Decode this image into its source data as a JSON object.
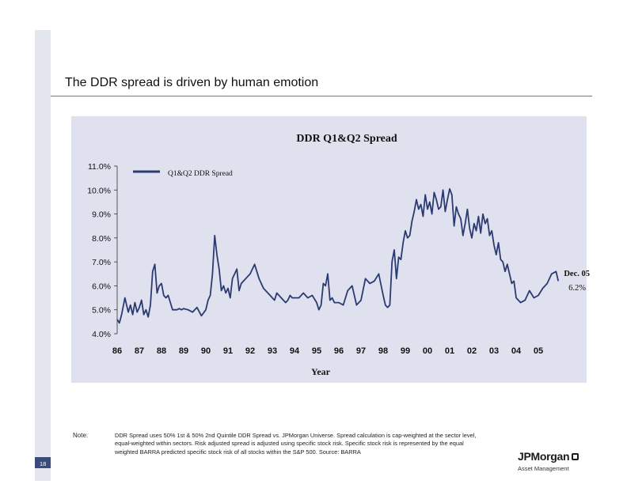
{
  "slide": {
    "title": "The DDR spread is driven by human emotion",
    "page_number": "18",
    "note_label": "Note:",
    "note_text": "DDR Spread uses 50% 1st & 50% 2nd Quintile DDR Spread vs. JPMorgan Universe. Spread calculation is cap-weighted at the sector level, equal-weighted within sectors. Risk adjusted spread is adjusted using specific stock risk. Specific stock risk is represented by the equal weighted BARRA predicted specific stock risk of all stocks within the S&P 500. Source: BARRA",
    "logo_text": "JPMorgan",
    "logo_sub": "Asset Management"
  },
  "chart_data": {
    "type": "line",
    "title": "DDR Q1&Q2 Spread",
    "xlabel": "Year",
    "ylabel": "",
    "x_ticks": [
      "86",
      "87",
      "88",
      "89",
      "90",
      "91",
      "92",
      "93",
      "94",
      "95",
      "96",
      "97",
      "98",
      "99",
      "00",
      "01",
      "02",
      "03",
      "04",
      "05"
    ],
    "y_ticks": [
      "4.0%",
      "5.0%",
      "6.0%",
      "7.0%",
      "8.0%",
      "9.0%",
      "10.0%",
      "11.0%"
    ],
    "ylim": [
      4.0,
      11.0
    ],
    "xlim": [
      1986.0,
      2006.0
    ],
    "legend": "top-left",
    "line_color": "#2c3a72",
    "annotation": {
      "label": "Dec. 05",
      "value": "6.2%"
    },
    "series": [
      {
        "name": "Q1&Q2 DDR Spread",
        "x": [
          1986.0,
          1986.1,
          1986.2,
          1986.35,
          1986.5,
          1986.6,
          1986.7,
          1986.8,
          1986.9,
          1987.0,
          1987.1,
          1987.2,
          1987.3,
          1987.4,
          1987.5,
          1987.6,
          1987.7,
          1987.8,
          1987.9,
          1988.0,
          1988.1,
          1988.2,
          1988.3,
          1988.4,
          1988.5,
          1988.6,
          1988.7,
          1988.8,
          1988.9,
          1989.0,
          1989.2,
          1989.4,
          1989.6,
          1989.8,
          1990.0,
          1990.1,
          1990.2,
          1990.3,
          1990.4,
          1990.5,
          1990.6,
          1990.7,
          1990.8,
          1990.9,
          1991.0,
          1991.1,
          1991.2,
          1991.3,
          1991.4,
          1991.5,
          1991.6,
          1991.7,
          1991.8,
          1991.9,
          1992.0,
          1992.2,
          1992.4,
          1992.6,
          1992.8,
          1992.9,
          1993.0,
          1993.1,
          1993.2,
          1993.3,
          1993.4,
          1993.5,
          1993.6,
          1993.7,
          1993.8,
          1993.9,
          1994.0,
          1994.2,
          1994.4,
          1994.6,
          1994.8,
          1995.0,
          1995.1,
          1995.2,
          1995.3,
          1995.4,
          1995.5,
          1995.6,
          1995.7,
          1995.8,
          1996.0,
          1996.2,
          1996.4,
          1996.6,
          1996.8,
          1997.0,
          1997.2,
          1997.4,
          1997.6,
          1997.8,
          1998.0,
          1998.1,
          1998.2,
          1998.3,
          1998.4,
          1998.5,
          1998.6,
          1998.7,
          1998.8,
          1998.9,
          1999.0,
          1999.1,
          1999.2,
          1999.3,
          1999.4,
          1999.5,
          1999.6,
          1999.7,
          1999.8,
          1999.9,
          2000.0,
          2000.1,
          2000.2,
          2000.3,
          2000.4,
          2000.5,
          2000.6,
          2000.7,
          2000.8,
          2000.9,
          2001.0,
          2001.1,
          2001.2,
          2001.3,
          2001.4,
          2001.5,
          2001.6,
          2001.7,
          2001.8,
          2001.9,
          2002.0,
          2002.1,
          2002.2,
          2002.3,
          2002.4,
          2002.5,
          2002.6,
          2002.7,
          2002.8,
          2002.9,
          2003.0,
          2003.1,
          2003.2,
          2003.3,
          2003.4,
          2003.5,
          2003.6,
          2003.7,
          2003.8,
          2003.9,
          2004.0,
          2004.2,
          2004.4,
          2004.6,
          2004.8,
          2005.0,
          2005.2,
          2005.4,
          2005.6,
          2005.8,
          2005.9
        ],
        "values": [
          4.6,
          4.45,
          4.8,
          5.5,
          4.9,
          5.2,
          4.8,
          5.3,
          4.9,
          5.1,
          5.4,
          4.8,
          5.0,
          4.7,
          5.2,
          6.6,
          6.9,
          5.7,
          6.0,
          6.1,
          5.6,
          5.5,
          5.6,
          5.3,
          5.0,
          5.0,
          5.0,
          5.05,
          5.0,
          5.05,
          5.0,
          4.9,
          5.1,
          4.75,
          5.0,
          5.4,
          5.6,
          6.5,
          8.1,
          7.3,
          6.7,
          5.8,
          6.0,
          5.7,
          5.9,
          5.5,
          6.3,
          6.5,
          6.7,
          5.8,
          6.1,
          6.2,
          6.3,
          6.4,
          6.5,
          6.9,
          6.3,
          5.9,
          5.7,
          5.6,
          5.5,
          5.4,
          5.7,
          5.6,
          5.5,
          5.4,
          5.3,
          5.4,
          5.6,
          5.5,
          5.5,
          5.5,
          5.7,
          5.5,
          5.6,
          5.3,
          5.0,
          5.2,
          6.1,
          6.0,
          6.5,
          5.4,
          5.5,
          5.3,
          5.3,
          5.2,
          5.8,
          6.0,
          5.2,
          5.4,
          6.3,
          6.1,
          6.2,
          6.5,
          5.6,
          5.2,
          5.1,
          5.2,
          7.0,
          7.5,
          6.3,
          7.2,
          7.1,
          7.8,
          8.3,
          8.0,
          8.1,
          8.7,
          9.1,
          9.6,
          9.2,
          9.4,
          8.9,
          9.8,
          9.2,
          9.5,
          9.0,
          9.9,
          9.6,
          9.2,
          9.3,
          10.0,
          9.1,
          9.6,
          10.05,
          9.8,
          8.5,
          9.3,
          9.0,
          8.8,
          8.1,
          8.6,
          9.2,
          8.4,
          8.0,
          8.6,
          8.3,
          8.9,
          8.2,
          9.0,
          8.6,
          8.8,
          8.1,
          8.3,
          7.7,
          7.3,
          7.8,
          7.1,
          7.0,
          6.6,
          6.9,
          6.5,
          6.1,
          6.2,
          5.5,
          5.3,
          5.4,
          5.8,
          5.5,
          5.6,
          5.9,
          6.1,
          6.5,
          6.6,
          6.2
        ]
      }
    ]
  }
}
